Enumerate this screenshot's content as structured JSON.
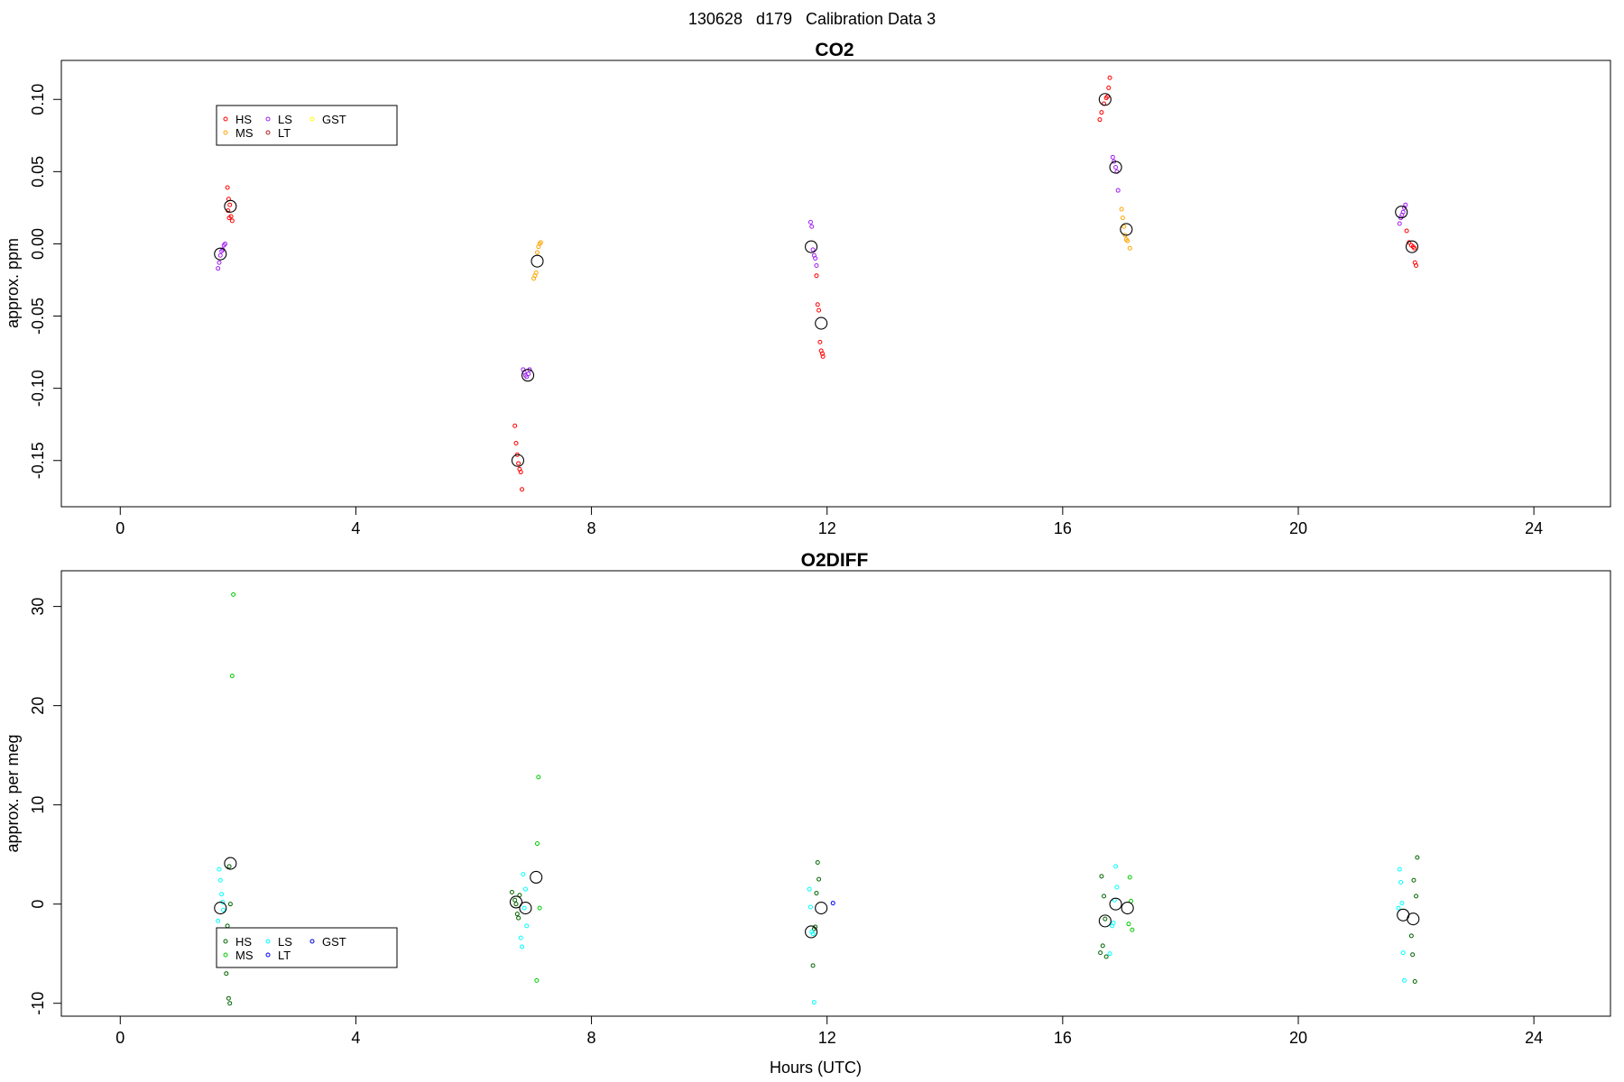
{
  "page_title": "130628   d179   Calibration Data 3",
  "chart_data": [
    {
      "type": "scatter",
      "title": "CO2",
      "xlabel": "",
      "ylabel": "approx. ppm",
      "xlim": [
        -1,
        25.3
      ],
      "ylim": [
        -0.182,
        0.127
      ],
      "xticks": [
        "0",
        "4",
        "8",
        "12",
        "16",
        "20",
        "24"
      ],
      "yticks": [
        "-0.15",
        "-0.10",
        "-0.05",
        "0.00",
        "0.05",
        "0.10"
      ],
      "legend": {
        "placement": "top-left",
        "entries": [
          {
            "label": "HS",
            "color": "#ff0000"
          },
          {
            "label": "MS",
            "color": "#ffa500"
          },
          {
            "label": "LS",
            "color": "#a020f0"
          },
          {
            "label": "LT",
            "color": "#b22222"
          },
          {
            "label": "GST",
            "color": "#ffff00"
          }
        ]
      },
      "series": [
        {
          "name": "HS",
          "color": "#ff0000",
          "points": [
            [
              1.82,
              0.039
            ],
            [
              1.84,
              0.031
            ],
            [
              1.86,
              0.027
            ],
            [
              1.83,
              0.023
            ],
            [
              1.88,
              0.019
            ],
            [
              1.85,
              0.018
            ],
            [
              1.9,
              0.016
            ],
            [
              6.7,
              -0.126
            ],
            [
              6.72,
              -0.138
            ],
            [
              6.74,
              -0.146
            ],
            [
              6.76,
              -0.152
            ],
            [
              6.78,
              -0.156
            ],
            [
              6.8,
              -0.158
            ],
            [
              6.82,
              -0.17
            ],
            [
              11.82,
              -0.022
            ],
            [
              11.84,
              -0.042
            ],
            [
              11.86,
              -0.046
            ],
            [
              11.88,
              -0.068
            ],
            [
              11.9,
              -0.074
            ],
            [
              11.92,
              -0.076
            ],
            [
              11.93,
              -0.078
            ],
            [
              16.63,
              0.086
            ],
            [
              16.66,
              0.091
            ],
            [
              16.7,
              0.097
            ],
            [
              16.74,
              0.101
            ],
            [
              16.76,
              0.102
            ],
            [
              16.78,
              0.108
            ],
            [
              16.8,
              0.115
            ],
            [
              21.84,
              0.009
            ],
            [
              21.88,
              0.001
            ],
            [
              21.92,
              -0.001
            ],
            [
              21.95,
              -0.002
            ],
            [
              21.97,
              -0.003
            ],
            [
              21.98,
              -0.013
            ],
            [
              22.0,
              -0.015
            ]
          ]
        },
        {
          "name": "MS",
          "color": "#ffa500",
          "points": [
            [
              7.02,
              -0.024
            ],
            [
              7.04,
              -0.022
            ],
            [
              7.06,
              -0.02
            ],
            [
              7.08,
              -0.006
            ],
            [
              7.1,
              -0.002
            ],
            [
              7.12,
              0.0
            ],
            [
              7.14,
              0.001
            ],
            [
              17.0,
              0.024
            ],
            [
              17.02,
              0.018
            ],
            [
              17.04,
              0.012
            ],
            [
              17.06,
              0.006
            ],
            [
              17.08,
              0.003
            ],
            [
              17.1,
              0.002
            ],
            [
              17.14,
              -0.003
            ]
          ]
        },
        {
          "name": "LS",
          "color": "#a020f0",
          "points": [
            [
              1.66,
              -0.017
            ],
            [
              1.68,
              -0.013
            ],
            [
              1.7,
              -0.008
            ],
            [
              1.72,
              -0.005
            ],
            [
              1.74,
              -0.004
            ],
            [
              1.76,
              -0.001
            ],
            [
              1.78,
              0.0
            ],
            [
              6.84,
              -0.087
            ],
            [
              6.86,
              -0.089
            ],
            [
              6.88,
              -0.091
            ],
            [
              6.9,
              -0.092
            ],
            [
              6.93,
              -0.09
            ],
            [
              6.95,
              -0.087
            ],
            [
              11.72,
              0.015
            ],
            [
              11.74,
              0.012
            ],
            [
              11.76,
              -0.004
            ],
            [
              11.78,
              -0.008
            ],
            [
              11.8,
              -0.01
            ],
            [
              11.82,
              -0.015
            ],
            [
              16.85,
              0.06
            ],
            [
              16.87,
              0.057
            ],
            [
              16.9,
              0.053
            ],
            [
              16.92,
              0.05
            ],
            [
              16.94,
              0.037
            ],
            [
              21.72,
              0.014
            ],
            [
              21.74,
              0.018
            ],
            [
              21.76,
              0.02
            ],
            [
              21.78,
              0.022
            ],
            [
              21.8,
              0.025
            ],
            [
              21.82,
              0.027
            ]
          ]
        },
        {
          "name": "LT",
          "color": "#b22222",
          "points": []
        },
        {
          "name": "GST",
          "color": "#ffff00",
          "points": []
        },
        {
          "name": "means",
          "color": "#000000",
          "marker": "large-circle",
          "points": [
            [
              1.7,
              -0.007
            ],
            [
              1.87,
              0.026
            ],
            [
              6.75,
              -0.15
            ],
            [
              6.92,
              -0.091
            ],
            [
              7.08,
              -0.012
            ],
            [
              11.73,
              -0.002
            ],
            [
              11.9,
              -0.055
            ],
            [
              16.72,
              0.1
            ],
            [
              16.9,
              0.053
            ],
            [
              17.08,
              0.01
            ],
            [
              21.75,
              0.022
            ],
            [
              21.93,
              -0.002
            ]
          ]
        }
      ]
    },
    {
      "type": "scatter",
      "title": "O2DIFF",
      "xlabel": "Hours (UTC)",
      "ylabel": "approx. per meg",
      "xlim": [
        -1,
        25.3
      ],
      "ylim": [
        -11.3,
        33.6
      ],
      "xticks": [
        "0",
        "4",
        "8",
        "12",
        "16",
        "20",
        "24"
      ],
      "yticks": [
        "-10",
        "0",
        "10",
        "20",
        "30"
      ],
      "legend": {
        "placement": "bottom-left",
        "entries": [
          {
            "label": "HS",
            "color": "#006400"
          },
          {
            "label": "MS",
            "color": "#00cd00"
          },
          {
            "label": "LS",
            "color": "#00ffff"
          },
          {
            "label": "LT",
            "color": "#0000ff"
          },
          {
            "label": "GST",
            "color": "#0000cd"
          }
        ]
      },
      "series": [
        {
          "name": "HS",
          "color": "#006400",
          "points": [
            [
              1.85,
              3.8
            ],
            [
              1.87,
              0.0
            ],
            [
              1.82,
              -2.2
            ],
            [
              1.8,
              -7.0
            ],
            [
              1.84,
              -9.5
            ],
            [
              1.86,
              -10.0
            ],
            [
              6.65,
              1.2
            ],
            [
              6.7,
              0.4
            ],
            [
              6.72,
              0.0
            ],
            [
              6.74,
              -1.0
            ],
            [
              6.76,
              -1.4
            ],
            [
              6.78,
              0.9
            ],
            [
              11.84,
              4.2
            ],
            [
              11.86,
              2.5
            ],
            [
              11.82,
              1.1
            ],
            [
              11.8,
              -2.3
            ],
            [
              11.78,
              -2.5
            ],
            [
              11.76,
              -6.2
            ],
            [
              16.66,
              2.8
            ],
            [
              16.7,
              0.8
            ],
            [
              16.72,
              -1.5
            ],
            [
              16.68,
              -4.2
            ],
            [
              16.64,
              -4.9
            ],
            [
              16.74,
              -5.3
            ],
            [
              22.02,
              4.7
            ],
            [
              21.96,
              2.4
            ],
            [
              22.0,
              0.8
            ],
            [
              21.92,
              -3.2
            ],
            [
              21.94,
              -5.1
            ],
            [
              21.98,
              -7.8
            ]
          ]
        },
        {
          "name": "MS",
          "color": "#00cd00",
          "points": [
            [
              1.92,
              31.2
            ],
            [
              1.9,
              23.0
            ],
            [
              7.1,
              12.8
            ],
            [
              7.08,
              6.1
            ],
            [
              7.12,
              -0.4
            ],
            [
              7.07,
              -7.7
            ],
            [
              17.14,
              2.7
            ],
            [
              17.16,
              0.3
            ],
            [
              17.12,
              -2.0
            ],
            [
              17.18,
              -2.6
            ]
          ]
        },
        {
          "name": "LS",
          "color": "#00ffff",
          "points": [
            [
              1.68,
              3.5
            ],
            [
              1.7,
              2.4
            ],
            [
              1.72,
              1.0
            ],
            [
              1.74,
              0.2
            ],
            [
              1.66,
              -1.7
            ],
            [
              1.75,
              -0.6
            ],
            [
              6.84,
              3.0
            ],
            [
              6.88,
              1.5
            ],
            [
              6.86,
              -0.4
            ],
            [
              6.9,
              -2.2
            ],
            [
              6.8,
              -3.4
            ],
            [
              6.82,
              -4.3
            ],
            [
              11.7,
              1.5
            ],
            [
              11.72,
              -0.3
            ],
            [
              11.74,
              -2.8
            ],
            [
              11.76,
              -3.0
            ],
            [
              11.78,
              -9.9
            ],
            [
              16.9,
              3.8
            ],
            [
              16.92,
              1.7
            ],
            [
              16.88,
              0.4
            ],
            [
              16.86,
              -1.9
            ],
            [
              16.84,
              -2.2
            ],
            [
              16.8,
              -5.0
            ],
            [
              21.72,
              3.5
            ],
            [
              21.74,
              2.2
            ],
            [
              21.76,
              0.1
            ],
            [
              21.7,
              -0.4
            ],
            [
              21.78,
              -4.9
            ],
            [
              21.8,
              -7.7
            ]
          ]
        },
        {
          "name": "LT",
          "color": "#0000ff",
          "points": [
            [
              12.1,
              0.1
            ]
          ]
        },
        {
          "name": "GST",
          "color": "#0000cd",
          "points": []
        },
        {
          "name": "means",
          "color": "#000000",
          "marker": "large-circle",
          "points": [
            [
              1.7,
              -0.4
            ],
            [
              1.87,
              4.1
            ],
            [
              6.72,
              0.2
            ],
            [
              6.88,
              -0.4
            ],
            [
              7.06,
              2.7
            ],
            [
              11.73,
              -2.8
            ],
            [
              11.9,
              -0.4
            ],
            [
              16.72,
              -1.7
            ],
            [
              16.9,
              0.0
            ],
            [
              17.1,
              -0.4
            ],
            [
              21.78,
              -1.1
            ],
            [
              21.95,
              -1.5
            ]
          ]
        }
      ]
    }
  ]
}
